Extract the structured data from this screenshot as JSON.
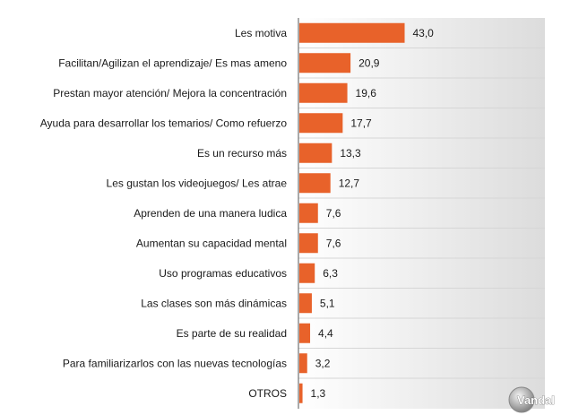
{
  "chart_data": {
    "type": "bar",
    "orientation": "horizontal",
    "categories": [
      "Les motiva",
      "Facilitan/Agilizan el aprendizaje/ Es mas ameno",
      "Prestan mayor atención/ Mejora la concentración",
      "Ayuda para desarrollar los temarios/ Como refuerzo",
      "Es un recurso más",
      "Les gustan los videojuegos/ Les atrae",
      "Aprenden de una manera ludica",
      "Aumentan su capacidad mental",
      "Uso programas educativos",
      "Las clases son más dinámicas",
      "Es parte de su realidad",
      "Para familiarizarlos con las nuevas tecnologías",
      "OTROS"
    ],
    "values": [
      43.0,
      20.9,
      19.6,
      17.7,
      13.3,
      12.7,
      7.6,
      7.6,
      6.3,
      5.1,
      4.4,
      3.2,
      1.3
    ],
    "value_labels": [
      "43,0",
      "20,9",
      "19,6",
      "17,7",
      "13,3",
      "12,7",
      "7,6",
      "7,6",
      "6,3",
      "5,1",
      "4,4",
      "3,2",
      "1,3"
    ],
    "xlim": [
      0,
      100
    ],
    "title": "",
    "xlabel": "",
    "ylabel": "",
    "grid": false,
    "legend": "none",
    "colors": {
      "bar": "#e8622a",
      "plot_bg_light": "#ffffff",
      "plot_bg_dark": "#dcdcdc",
      "row_separator": "#d6d6d6",
      "axis_line": "#555555"
    }
  },
  "watermark": {
    "text": "Vandal",
    "icon": "vandal-logo-icon"
  }
}
